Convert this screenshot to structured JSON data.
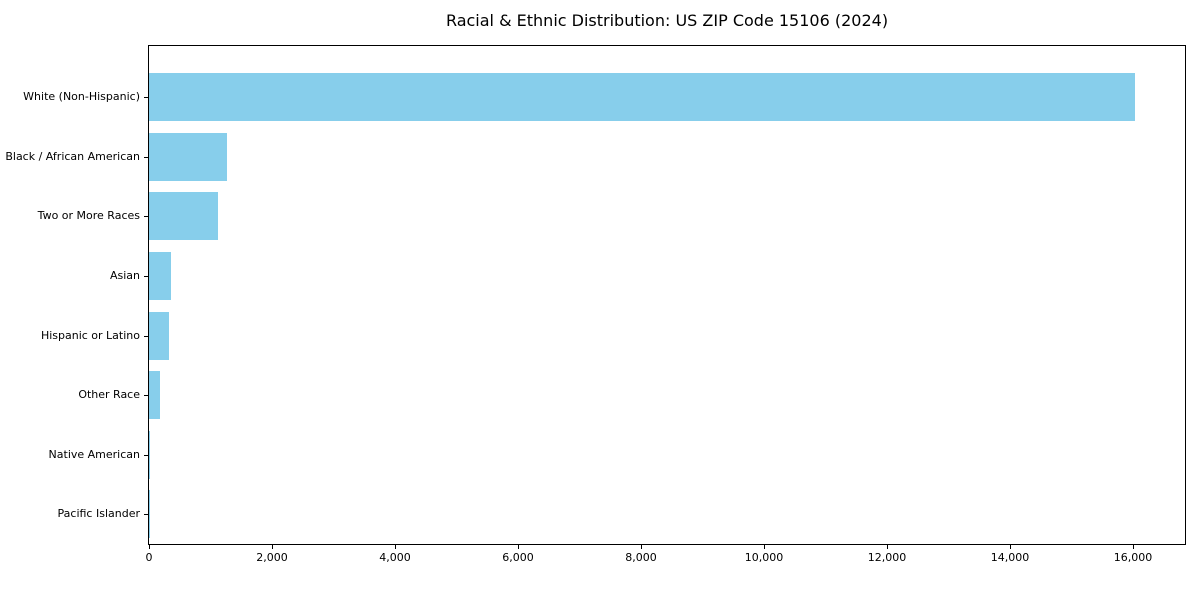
{
  "chart_data": {
    "type": "bar",
    "orientation": "horizontal",
    "title": "Racial & Ethnic Distribution: US ZIP Code 15106 (2024)",
    "xlabel": "",
    "ylabel": "",
    "categories": [
      "White (Non-Hispanic)",
      "Black / African American",
      "Two or More Races",
      "Asian",
      "Hispanic or Latino",
      "Other Race",
      "Native American",
      "Pacific Islander"
    ],
    "values": [
      16040,
      1265,
      1130,
      355,
      320,
      175,
      10,
      5
    ],
    "xlim": [
      0,
      16845
    ],
    "x_ticks": [
      0,
      2000,
      4000,
      6000,
      8000,
      10000,
      12000,
      14000,
      16000
    ],
    "x_tick_labels": [
      "0",
      "2,000",
      "4,000",
      "6,000",
      "8,000",
      "10,000",
      "12,000",
      "14,000",
      "16,000"
    ],
    "bar_color": "#87CEEB",
    "axis_color": "#000000",
    "grid": false,
    "legend": null
  }
}
